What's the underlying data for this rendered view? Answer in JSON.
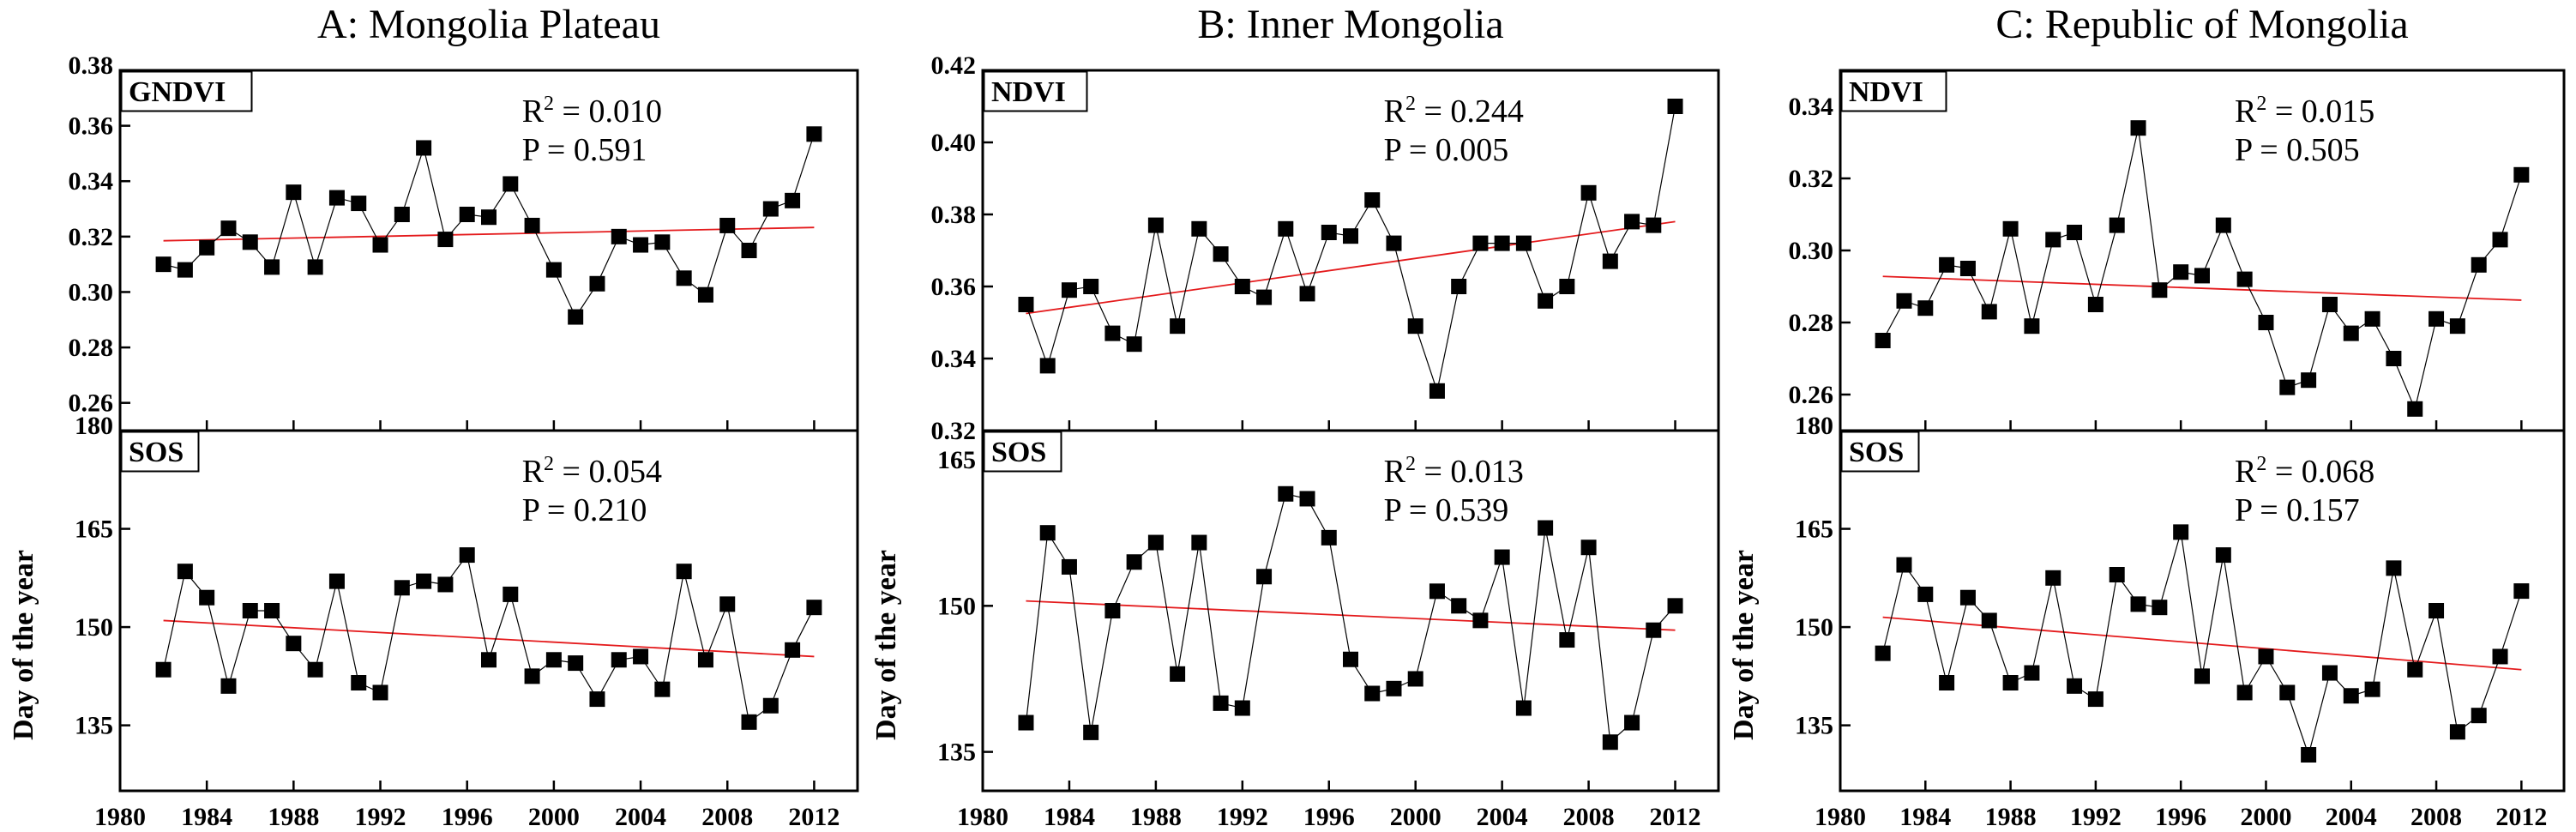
{
  "chart_data": [
    {
      "panel_title": "A: Mongolia Plateau",
      "type": "line",
      "x": [
        1982,
        1983,
        1984,
        1985,
        1986,
        1987,
        1988,
        1989,
        1990,
        1991,
        1992,
        1993,
        1994,
        1995,
        1996,
        1997,
        1998,
        1999,
        2000,
        2001,
        2002,
        2003,
        2004,
        2005,
        2006,
        2007,
        2008,
        2009,
        2010,
        2011,
        2012
      ],
      "xlim": [
        1980,
        2014
      ],
      "xticks": [
        "1980",
        "1984",
        "1988",
        "1992",
        "1996",
        "2000",
        "2004",
        "2008",
        "2012"
      ],
      "subplots": [
        {
          "tag": "GNDVI",
          "ylabel": "",
          "ylim": [
            0.25,
            0.38
          ],
          "yticks": [
            "0.26",
            "0.28",
            "0.30",
            "0.32",
            "0.34",
            "0.36",
            "0.38"
          ],
          "values": [
            0.31,
            0.308,
            0.316,
            0.323,
            0.318,
            0.309,
            0.336,
            0.309,
            0.334,
            0.332,
            0.317,
            0.328,
            0.352,
            0.319,
            0.328,
            0.327,
            0.339,
            0.324,
            0.308,
            0.291,
            0.303,
            0.32,
            0.317,
            0.318,
            0.305,
            0.299,
            0.324,
            0.315,
            0.33,
            0.333,
            0.357
          ],
          "trend": [
            0.3185,
            0.3233
          ],
          "r2_label": "R",
          "r2_exp": "2",
          "r2_value": " = 0.010",
          "p_text": "P = 0.591"
        },
        {
          "tag": "SOS",
          "ylabel": "Day of the year",
          "ylim": [
            125,
            180
          ],
          "yticks": [
            "135",
            "150",
            "165",
            "180"
          ],
          "values": [
            143.5,
            158.5,
            154.5,
            141.0,
            152.5,
            152.5,
            147.5,
            143.5,
            157.0,
            141.5,
            140.0,
            156.0,
            157.0,
            156.5,
            161.0,
            145.0,
            155.0,
            142.5,
            145.0,
            144.5,
            139.0,
            145.0,
            145.5,
            140.5,
            158.5,
            145.0,
            153.5,
            135.5,
            138.0,
            146.5,
            153.0
          ],
          "trend": [
            151.0,
            145.5
          ],
          "r2_label": "R",
          "r2_exp": "2",
          "r2_value": " = 0.054",
          "p_text": "P = 0.210"
        }
      ]
    },
    {
      "panel_title": "B: Inner Mongolia",
      "type": "line",
      "x": [
        1982,
        1983,
        1984,
        1985,
        1986,
        1987,
        1988,
        1989,
        1990,
        1991,
        1992,
        1993,
        1994,
        1995,
        1996,
        1997,
        1998,
        1999,
        2000,
        2001,
        2002,
        2003,
        2004,
        2005,
        2006,
        2007,
        2008,
        2009,
        2010,
        2011,
        2012
      ],
      "xlim": [
        1980,
        2014
      ],
      "xticks": [
        "1980",
        "1984",
        "1988",
        "1992",
        "1996",
        "2000",
        "2004",
        "2008",
        "2012"
      ],
      "subplots": [
        {
          "tag": "NDVI",
          "ylabel": "",
          "ylim": [
            0.32,
            0.42
          ],
          "yticks": [
            "0.32",
            "0.34",
            "0.36",
            "0.38",
            "0.40",
            "0.42"
          ],
          "values": [
            0.355,
            0.338,
            0.359,
            0.36,
            0.347,
            0.344,
            0.377,
            0.349,
            0.376,
            0.369,
            0.36,
            0.357,
            0.376,
            0.358,
            0.375,
            0.374,
            0.384,
            0.372,
            0.349,
            0.331,
            0.36,
            0.372,
            0.372,
            0.372,
            0.356,
            0.36,
            0.386,
            0.367,
            0.378,
            0.377,
            0.41
          ],
          "trend": [
            0.3525,
            0.378
          ],
          "r2_label": "R",
          "r2_exp": "2",
          "r2_value": " = 0.244",
          "p_text": "P = 0.005"
        },
        {
          "tag": "SOS",
          "ylabel": "Day of the year",
          "ylim": [
            131,
            168
          ],
          "yticks": [
            "135",
            "150",
            "165"
          ],
          "values": [
            138.0,
            157.5,
            154.0,
            137.0,
            149.5,
            154.5,
            156.5,
            143.0,
            156.5,
            140.0,
            139.5,
            153.0,
            161.5,
            161.0,
            157.0,
            144.5,
            141.0,
            141.5,
            142.5,
            151.5,
            150.0,
            148.5,
            155.0,
            139.5,
            158.0,
            146.5,
            156.0,
            136.0,
            138.0,
            147.5,
            150.0
          ],
          "trend": [
            150.5,
            147.5
          ],
          "r2_label": "R",
          "r2_exp": "2",
          "r2_value": " = 0.013",
          "p_text": "P = 0.539"
        }
      ]
    },
    {
      "panel_title": "C: Republic of Mongolia",
      "type": "line",
      "x": [
        1982,
        1983,
        1984,
        1985,
        1986,
        1987,
        1988,
        1989,
        1990,
        1991,
        1992,
        1993,
        1994,
        1995,
        1996,
        1997,
        1998,
        1999,
        2000,
        2001,
        2002,
        2003,
        2004,
        2005,
        2006,
        2007,
        2008,
        2009,
        2010,
        2011,
        2012
      ],
      "xlim": [
        1980,
        2014
      ],
      "xticks": [
        "1980",
        "1984",
        "1988",
        "1992",
        "1996",
        "2000",
        "2004",
        "2008",
        "2012"
      ],
      "subplots": [
        {
          "tag": "NDVI",
          "ylabel": "",
          "ylim": [
            0.25,
            0.35
          ],
          "yticks": [
            "0.26",
            "0.28",
            "0.30",
            "0.32",
            "0.34"
          ],
          "values": [
            0.275,
            0.286,
            0.284,
            0.296,
            0.295,
            0.283,
            0.306,
            0.279,
            0.303,
            0.305,
            0.285,
            0.307,
            0.334,
            0.289,
            0.294,
            0.293,
            0.307,
            0.292,
            0.28,
            0.262,
            0.264,
            0.285,
            0.277,
            0.281,
            0.27,
            0.256,
            0.281,
            0.279,
            0.296,
            0.303,
            0.321
          ],
          "trend": [
            0.2928,
            0.2862
          ],
          "r2_label": "R",
          "r2_exp": "2",
          "r2_value": " = 0.015",
          "p_text": "P = 0.505"
        },
        {
          "tag": "SOS",
          "ylabel": "Day of the year",
          "ylim": [
            125,
            180
          ],
          "yticks": [
            "135",
            "150",
            "165",
            "180"
          ],
          "values": [
            146.0,
            159.5,
            155.0,
            141.5,
            154.5,
            151.0,
            141.5,
            143.0,
            157.5,
            141.0,
            139.0,
            158.0,
            153.5,
            153.0,
            164.5,
            142.5,
            161.0,
            140.0,
            145.5,
            140.0,
            130.5,
            143.0,
            139.5,
            140.5,
            159.0,
            143.5,
            152.5,
            134.0,
            136.5,
            145.5,
            155.5
          ],
          "trend": [
            151.5,
            143.5
          ],
          "r2_label": "R",
          "r2_exp": "2",
          "r2_value": " = 0.068",
          "p_text": "P = 0.157"
        }
      ]
    }
  ]
}
